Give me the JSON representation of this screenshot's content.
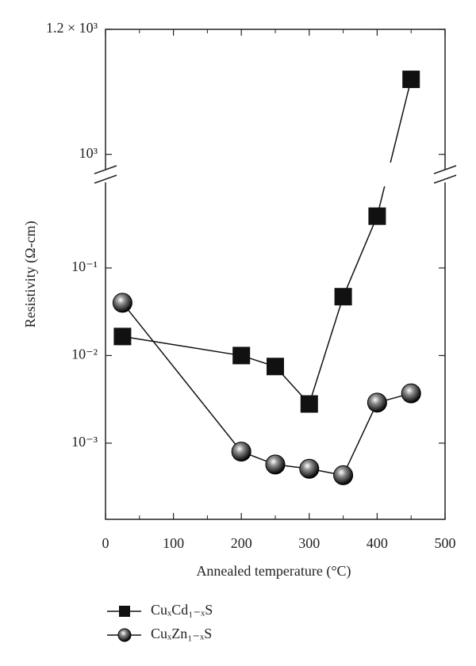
{
  "chart_data": {
    "type": "line",
    "x_label": "Annealed temperature (°C)",
    "y_label": "Resistivity (Ω-cm)",
    "xlim": [
      0,
      500
    ],
    "xticks": [
      0,
      100,
      200,
      300,
      400,
      500
    ],
    "y_segments": [
      {
        "log": true,
        "ylim": [
          0.000135,
          0.91
        ],
        "yticks": [
          {
            "value": 0.001,
            "label": "10⁻³"
          },
          {
            "value": 0.01,
            "label": "10⁻²"
          },
          {
            "value": 0.1,
            "label": "10⁻¹"
          }
        ]
      },
      {
        "log": false,
        "ylim": [
          978,
          1200
        ],
        "yticks": [
          {
            "value": 1000,
            "label": "10³"
          },
          {
            "value": 1200,
            "label": "1.2 × 10³"
          }
        ]
      }
    ],
    "x": [
      25,
      200,
      250,
      300,
      350,
      400,
      450
    ],
    "series": [
      {
        "name": "CuₓCd₁₋ₓS",
        "color": "#111111",
        "marker": "square",
        "values": [
          0.0165,
          0.01,
          0.0075,
          0.0028,
          0.047,
          0.39,
          1120
        ]
      },
      {
        "name": "CuₓZn₁₋ₓS",
        "color": "#111111",
        "marker": "sphere",
        "values": [
          0.04,
          0.0008,
          0.00057,
          0.00051,
          0.00043,
          0.0029,
          0.0037
        ]
      }
    ]
  }
}
